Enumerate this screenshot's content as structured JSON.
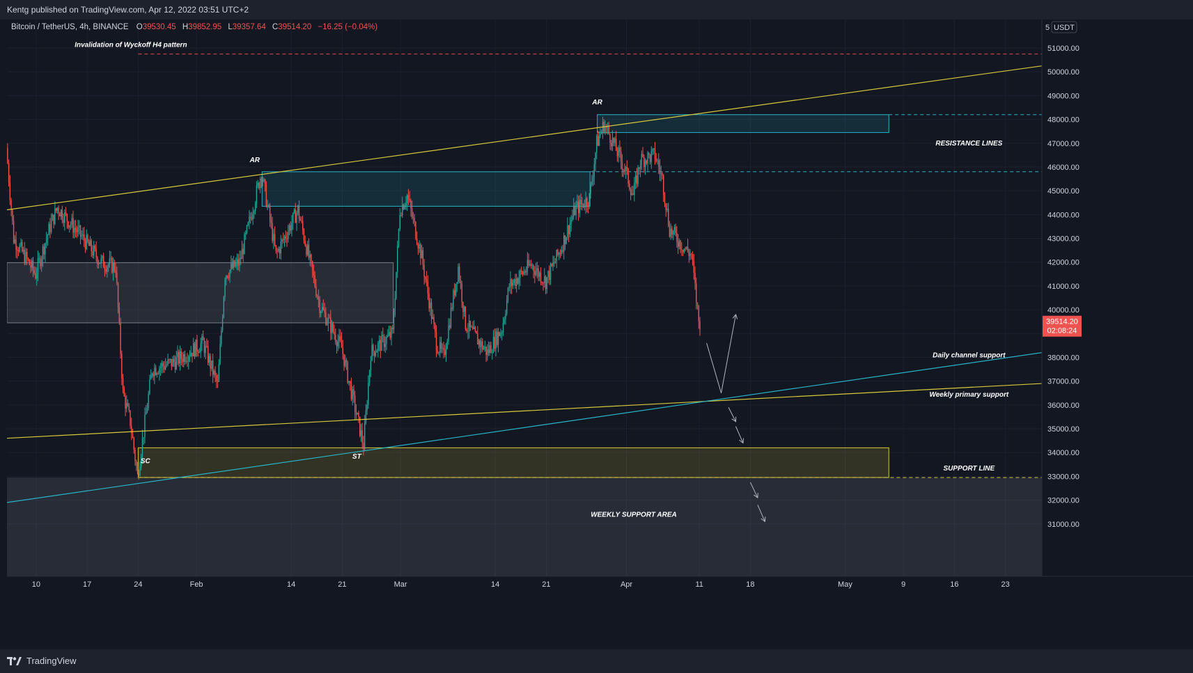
{
  "header": {
    "published": "Kentg published on TradingView.com, Apr 12, 2022 03:51 UTC+2"
  },
  "legend": {
    "symbol": "Bitcoin / TetherUS, 4h, BINANCE",
    "o_label": "O",
    "o_value": "39530.45",
    "h_label": "H",
    "h_value": "39852.95",
    "l_label": "L",
    "l_value": "39357.64",
    "c_label": "C",
    "c_value": "39514.20",
    "change": "−16.25 (−0.04%)"
  },
  "price_scale": {
    "currency": "USDT",
    "top_partial": "5",
    "last_price": "39514.20",
    "countdown": "02:08:24"
  },
  "footer": {
    "brand": "TradingView"
  },
  "colors": {
    "background": "#131722",
    "up": "#26a69a",
    "down": "#ef5350",
    "yellow": "#d8c93a",
    "cyan": "#26b5c9",
    "red_dashed": "#e0474c"
  },
  "chart_data": {
    "type": "candlestick",
    "symbol": "Bitcoin / TetherUS",
    "interval": "4h",
    "exchange": "BINANCE",
    "y_ticks": [
      31000,
      32000,
      33000,
      34000,
      35000,
      36000,
      37000,
      38000,
      39000,
      40000,
      41000,
      42000,
      43000,
      44000,
      45000,
      46000,
      47000,
      48000,
      49000,
      50000,
      51000
    ],
    "y_tick_labels": [
      "31000.00",
      "32000.00",
      "33000.00",
      "34000.00",
      "35000.00",
      "36000.00",
      "37000.00",
      "38000.00",
      "39000.00",
      "40000.00",
      "41000.00",
      "42000.00",
      "43000.00",
      "44000.00",
      "45000.00",
      "46000.00",
      "47000.00",
      "48000.00",
      "49000.00",
      "50000.00",
      "51000.00"
    ],
    "ylim": [
      28800,
      52200
    ],
    "x_range": [
      "2022-01-06",
      "2022-05-28"
    ],
    "x_ticks": [
      {
        "label": "10",
        "date": "2022-01-10"
      },
      {
        "label": "17",
        "date": "2022-01-17"
      },
      {
        "label": "24",
        "date": "2022-01-24"
      },
      {
        "label": "Feb",
        "date": "2022-02-01"
      },
      {
        "label": "14",
        "date": "2022-02-14"
      },
      {
        "label": "21",
        "date": "2022-02-21"
      },
      {
        "label": "Mar",
        "date": "2022-03-01"
      },
      {
        "label": "14",
        "date": "2022-03-14"
      },
      {
        "label": "21",
        "date": "2022-03-21"
      },
      {
        "label": "Apr",
        "date": "2022-04-01"
      },
      {
        "label": "11",
        "date": "2022-04-11"
      },
      {
        "label": "18",
        "date": "2022-04-18"
      },
      {
        "label": "May",
        "date": "2022-05-01"
      },
      {
        "label": "9",
        "date": "2022-05-09"
      },
      {
        "label": "16",
        "date": "2022-05-16"
      },
      {
        "label": "23",
        "date": "2022-05-23"
      }
    ],
    "price_path": [
      {
        "date": "2022-01-06",
        "price": 46800
      },
      {
        "date": "2022-01-07",
        "price": 43000
      },
      {
        "date": "2022-01-10",
        "price": 41500
      },
      {
        "date": "2022-01-12",
        "price": 43500
      },
      {
        "date": "2022-01-13",
        "price": 44300
      },
      {
        "date": "2022-01-16",
        "price": 43200
      },
      {
        "date": "2022-01-19",
        "price": 42000
      },
      {
        "date": "2022-01-21",
        "price": 41800
      },
      {
        "date": "2022-01-22",
        "price": 36500
      },
      {
        "date": "2022-01-23",
        "price": 35300
      },
      {
        "date": "2022-01-24",
        "price": 33000
      },
      {
        "date": "2022-01-26",
        "price": 37500
      },
      {
        "date": "2022-01-29",
        "price": 37800
      },
      {
        "date": "2022-02-02",
        "price": 38600
      },
      {
        "date": "2022-02-04",
        "price": 36800
      },
      {
        "date": "2022-02-05",
        "price": 41500
      },
      {
        "date": "2022-02-07",
        "price": 42000
      },
      {
        "date": "2022-02-09",
        "price": 44500
      },
      {
        "date": "2022-02-10",
        "price": 45800
      },
      {
        "date": "2022-02-12",
        "price": 42300
      },
      {
        "date": "2022-02-15",
        "price": 44200
      },
      {
        "date": "2022-02-18",
        "price": 40200
      },
      {
        "date": "2022-02-21",
        "price": 38400
      },
      {
        "date": "2022-02-22",
        "price": 37000
      },
      {
        "date": "2022-02-24",
        "price": 34300
      },
      {
        "date": "2022-02-25",
        "price": 38200
      },
      {
        "date": "2022-02-28",
        "price": 39000
      },
      {
        "date": "2022-03-01",
        "price": 44200
      },
      {
        "date": "2022-03-02",
        "price": 44800
      },
      {
        "date": "2022-03-04",
        "price": 42200
      },
      {
        "date": "2022-03-06",
        "price": 38600
      },
      {
        "date": "2022-03-07",
        "price": 38000
      },
      {
        "date": "2022-03-09",
        "price": 41800
      },
      {
        "date": "2022-03-10",
        "price": 39400
      },
      {
        "date": "2022-03-13",
        "price": 38200
      },
      {
        "date": "2022-03-15",
        "price": 39200
      },
      {
        "date": "2022-03-16",
        "price": 41000
      },
      {
        "date": "2022-03-19",
        "price": 41900
      },
      {
        "date": "2022-03-21",
        "price": 41200
      },
      {
        "date": "2022-03-23",
        "price": 42500
      },
      {
        "date": "2022-03-25",
        "price": 44200
      },
      {
        "date": "2022-03-27",
        "price": 44700
      },
      {
        "date": "2022-03-28",
        "price": 47000
      },
      {
        "date": "2022-03-29",
        "price": 47800
      },
      {
        "date": "2022-03-30",
        "price": 47200
      },
      {
        "date": "2022-04-01",
        "price": 45800
      },
      {
        "date": "2022-04-02",
        "price": 44800
      },
      {
        "date": "2022-04-03",
        "price": 46300
      },
      {
        "date": "2022-04-05",
        "price": 46500
      },
      {
        "date": "2022-04-06",
        "price": 45500
      },
      {
        "date": "2022-04-07",
        "price": 43400
      },
      {
        "date": "2022-04-09",
        "price": 42600
      },
      {
        "date": "2022-04-10",
        "price": 42300
      },
      {
        "date": "2022-04-11",
        "price": 39500
      }
    ],
    "zones": [
      {
        "kind": "resistance-box",
        "from": "2022-02-10",
        "to": "2022-03-27",
        "low": 44350,
        "high": 45800,
        "color": "#26b5c9"
      },
      {
        "kind": "resistance-box",
        "from": "2022-03-28",
        "to": "2022-05-07",
        "low": 47450,
        "high": 48200,
        "color": "#26b5c9"
      },
      {
        "kind": "range-box",
        "from": "2022-01-06",
        "to": "2022-02-28",
        "low": 39450,
        "high": 41980,
        "color": "#787b86"
      },
      {
        "kind": "support-box",
        "from": "2022-01-24",
        "to": "2022-05-07",
        "low": 32950,
        "high": 34200,
        "color": "#d8c93a"
      },
      {
        "kind": "weekly-support-area",
        "from": "2022-01-06",
        "to": "2022-05-28",
        "low": 28800,
        "high": 32950,
        "color": "#787b86"
      }
    ],
    "horizontal_lines": [
      {
        "price": 50750,
        "from": "2022-01-24",
        "style": "dashed",
        "color": "#e0474c"
      },
      {
        "price": 48200,
        "from": "2022-05-07",
        "style": "dashed",
        "color": "#26b5c9"
      },
      {
        "price": 45800,
        "from": "2022-03-27",
        "style": "dashed",
        "color": "#26b5c9"
      },
      {
        "price": 32950,
        "from": "2022-01-24",
        "style": "dashed",
        "color": "#d8c93a"
      }
    ],
    "trend_lines": [
      {
        "from": {
          "date": "2022-01-06",
          "price": 44200
        },
        "to": {
          "date": "2022-05-28",
          "price": 50250
        },
        "color": "#d8c93a"
      },
      {
        "from": {
          "date": "2022-01-06",
          "price": 34600
        },
        "to": {
          "date": "2022-05-28",
          "price": 36900
        },
        "color": "#d8c93a"
      },
      {
        "from": {
          "date": "2022-01-06",
          "price": 31900
        },
        "to": {
          "date": "2022-05-28",
          "price": 38200
        },
        "color": "#26b5c9"
      }
    ],
    "projection": [
      {
        "from": {
          "date": "2022-04-12",
          "price": 38600
        },
        "to": {
          "date": "2022-04-14",
          "price": 36500
        },
        "style": "line"
      },
      {
        "from": {
          "date": "2022-04-14",
          "price": 36500
        },
        "to": {
          "date": "2022-04-16",
          "price": 39800
        },
        "style": "arrow"
      },
      {
        "from": {
          "date": "2022-04-15",
          "price": 35900
        },
        "to": {
          "date": "2022-04-16",
          "price": 35300
        },
        "style": "arrow"
      },
      {
        "from": {
          "date": "2022-04-16",
          "price": 35100
        },
        "to": {
          "date": "2022-04-17",
          "price": 34400
        },
        "style": "arrow"
      },
      {
        "from": {
          "date": "2022-04-18",
          "price": 32750
        },
        "to": {
          "date": "2022-04-19",
          "price": 32100
        },
        "style": "arrow"
      },
      {
        "from": {
          "date": "2022-04-19",
          "price": 31800
        },
        "to": {
          "date": "2022-04-20",
          "price": 31100
        },
        "style": "arrow"
      }
    ],
    "annotations": [
      {
        "text": "Invalidation of Wyckoff H4 pattern",
        "date": "2022-01-23",
        "price": 51050
      },
      {
        "text": "AR",
        "date": "2022-02-09",
        "price": 46200
      },
      {
        "text": "AR",
        "date": "2022-03-28",
        "price": 48630
      },
      {
        "text": "RESISTANCE LINES",
        "date": "2022-05-18",
        "price": 46900
      },
      {
        "text": "SC",
        "date": "2022-01-25",
        "price": 33550
      },
      {
        "text": "ST",
        "date": "2022-02-23",
        "price": 33750
      },
      {
        "text": "Daily channel support",
        "date": "2022-05-18",
        "price": 38000
      },
      {
        "text": "Weekly primary support",
        "date": "2022-05-18",
        "price": 36350
      },
      {
        "text": "SUPPORT LINE",
        "date": "2022-05-18",
        "price": 33250
      },
      {
        "text": "WEEKLY SUPPORT AREA",
        "date": "2022-04-02",
        "price": 31300
      }
    ]
  }
}
